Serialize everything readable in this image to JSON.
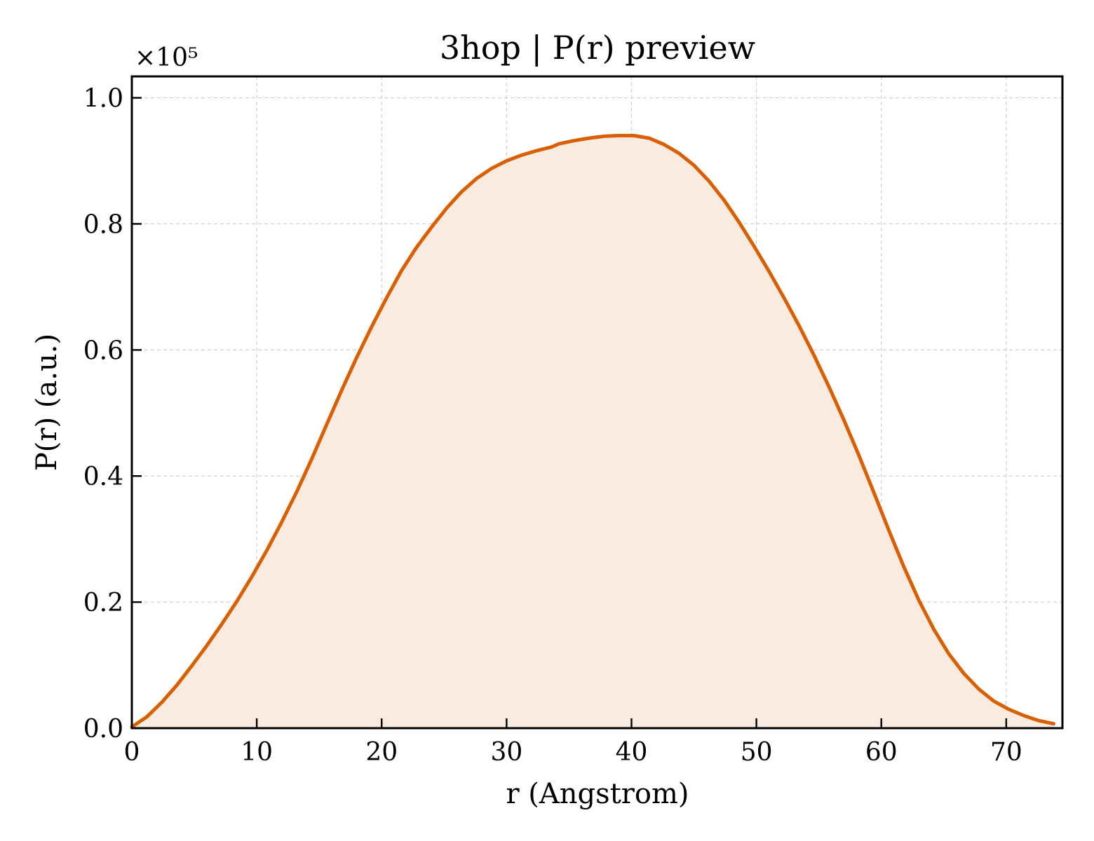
{
  "chart_data": {
    "type": "area",
    "title": "3hop | P(r) preview",
    "xlabel": "r (Angstrom)",
    "ylabel": "P(r) (a.u.)",
    "y_multiplier_label": "×10⁵",
    "xlim": [
      0,
      74.5
    ],
    "ylim": [
      0,
      1.034
    ],
    "xticks": [
      0,
      10,
      20,
      30,
      40,
      50,
      60,
      70
    ],
    "yticks": [
      0.0,
      0.2,
      0.4,
      0.6,
      0.8,
      1.0
    ],
    "xtick_labels": [
      "0",
      "10",
      "20",
      "30",
      "40",
      "50",
      "60",
      "70"
    ],
    "ytick_labels": [
      "0.0",
      "0.2",
      "0.4",
      "0.6",
      "0.8",
      "1.0"
    ],
    "grid": true,
    "legend": "none",
    "line_color": "#d95f02",
    "fill_color": "#f9ebe0",
    "series": [
      {
        "x": [
          0,
          1.2,
          2.4,
          3.6,
          4.8,
          6.0,
          7.2,
          8.4,
          9.6,
          10.8,
          12.0,
          13.2,
          14.4,
          15.6,
          16.8,
          18.0,
          19.2,
          20.4,
          21.6,
          22.8,
          24.0,
          25.2,
          26.4,
          27.6,
          28.8,
          30.0,
          31.2,
          32.4,
          33.6,
          34.2,
          35.4,
          36.6,
          37.8,
          39.0,
          40.2,
          41.4,
          42.6,
          43.8,
          45.0,
          46.2,
          47.4,
          48.6,
          49.8,
          51.0,
          52.2,
          53.4,
          54.6,
          55.8,
          57.0,
          58.2,
          59.4,
          60.6,
          61.8,
          63.0,
          64.2,
          65.4,
          66.6,
          67.8,
          69.0,
          70.2,
          71.4,
          72.6,
          73.8
        ],
        "y": [
          0.002,
          0.018,
          0.041,
          0.068,
          0.099,
          0.131,
          0.165,
          0.201,
          0.24,
          0.282,
          0.327,
          0.375,
          0.427,
          0.482,
          0.536,
          0.588,
          0.637,
          0.683,
          0.726,
          0.763,
          0.795,
          0.825,
          0.851,
          0.872,
          0.888,
          0.9,
          0.909,
          0.916,
          0.922,
          0.927,
          0.932,
          0.936,
          0.939,
          0.94,
          0.94,
          0.936,
          0.926,
          0.912,
          0.893,
          0.868,
          0.838,
          0.803,
          0.765,
          0.725,
          0.683,
          0.639,
          0.592,
          0.542,
          0.489,
          0.433,
          0.374,
          0.314,
          0.256,
          0.203,
          0.157,
          0.118,
          0.087,
          0.062,
          0.043,
          0.03,
          0.02,
          0.012,
          0.007
        ]
      }
    ]
  }
}
